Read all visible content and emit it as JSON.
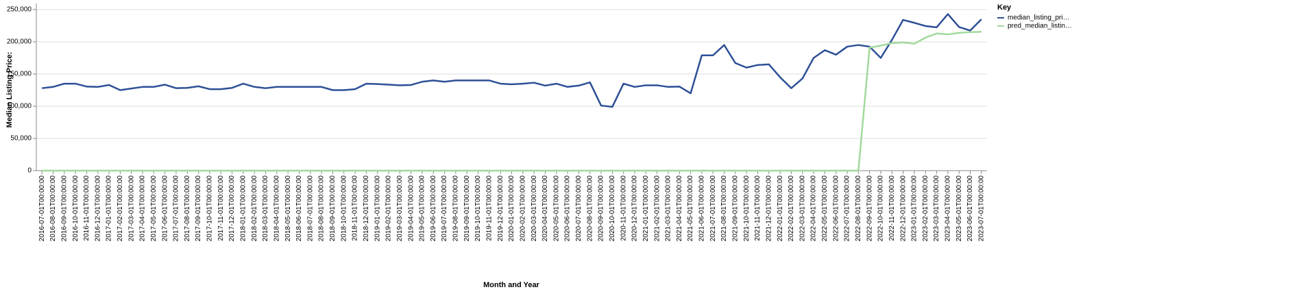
{
  "chart_data": {
    "type": "line",
    "x_label": "Month and Year",
    "y_label": "Median Listing Price:",
    "legend_title": "Key",
    "categories": [
      "2016-07-01T00:00:00",
      "2016-08-01T00:00:00",
      "2016-09-01T00:00:00",
      "2016-10-01T00:00:00",
      "2016-11-01T00:00:00",
      "2016-12-01T00:00:00",
      "2017-01-01T00:00:00",
      "2017-02-01T00:00:00",
      "2017-03-01T00:00:00",
      "2017-04-01T00:00:00",
      "2017-05-01T00:00:00",
      "2017-06-01T00:00:00",
      "2017-07-01T00:00:00",
      "2017-08-01T00:00:00",
      "2017-09-01T00:00:00",
      "2017-10-01T00:00:00",
      "2017-11-01T00:00:00",
      "2017-12-01T00:00:00",
      "2018-01-01T00:00:00",
      "2018-02-01T00:00:00",
      "2018-03-01T00:00:00",
      "2018-04-01T00:00:00",
      "2018-05-01T00:00:00",
      "2018-06-01T00:00:00",
      "2018-07-01T00:00:00",
      "2018-08-01T00:00:00",
      "2018-09-01T00:00:00",
      "2018-10-01T00:00:00",
      "2018-11-01T00:00:00",
      "2018-12-01T00:00:00",
      "2019-01-01T00:00:00",
      "2019-02-01T00:00:00",
      "2019-03-01T00:00:00",
      "2019-04-01T00:00:00",
      "2019-05-01T00:00:00",
      "2019-06-01T00:00:00",
      "2019-07-01T00:00:00",
      "2019-08-01T00:00:00",
      "2019-09-01T00:00:00",
      "2019-10-01T00:00:00",
      "2019-11-01T00:00:00",
      "2019-12-01T00:00:00",
      "2020-01-01T00:00:00",
      "2020-02-01T00:00:00",
      "2020-03-01T00:00:00",
      "2020-04-01T00:00:00",
      "2020-05-01T00:00:00",
      "2020-06-01T00:00:00",
      "2020-07-01T00:00:00",
      "2020-08-01T00:00:00",
      "2020-09-01T00:00:00",
      "2020-10-01T00:00:00",
      "2020-11-01T00:00:00",
      "2020-12-01T00:00:00",
      "2021-01-01T00:00:00",
      "2021-02-01T00:00:00",
      "2021-03-01T00:00:00",
      "2021-04-01T00:00:00",
      "2021-05-01T00:00:00",
      "2021-06-01T00:00:00",
      "2021-07-01T00:00:00",
      "2021-08-01T00:00:00",
      "2021-09-01T00:00:00",
      "2021-10-01T00:00:00",
      "2021-11-01T00:00:00",
      "2021-12-01T00:00:00",
      "2022-01-01T00:00:00",
      "2022-02-01T00:00:00",
      "2022-03-01T00:00:00",
      "2022-04-01T00:00:00",
      "2022-05-01T00:00:00",
      "2022-06-01T00:00:00",
      "2022-07-01T00:00:00",
      "2022-08-01T00:00:00",
      "2022-09-01T00:00:00",
      "2022-10-01T00:00:00",
      "2022-11-01T00:00:00",
      "2022-12-01T00:00:00",
      "2023-01-01T00:00:00",
      "2023-02-01T00:00:00",
      "2023-03-01T00:00:00",
      "2023-04-01T00:00:00",
      "2023-05-01T00:00:00",
      "2023-06-01T00:00:00",
      "2023-07-01T00:00:00"
    ],
    "series": [
      {
        "name": "median_listing_pri…",
        "color": "#2c4f96",
        "values": [
          128000,
          130000,
          135000,
          135000,
          130500,
          130000,
          133000,
          125000,
          127500,
          130000,
          130000,
          133500,
          128000,
          128500,
          131000,
          126500,
          126500,
          128500,
          135000,
          130000,
          128000,
          130000,
          130000,
          130000,
          130000,
          130000,
          125000,
          125000,
          126500,
          135000,
          134500,
          133500,
          132500,
          133000,
          138000,
          140000,
          138000,
          140000,
          140000,
          140000,
          140000,
          135000,
          134000,
          135000,
          136500,
          132000,
          135000,
          130000,
          132000,
          137000,
          101000,
          99000,
          135000,
          130000,
          132500,
          132500,
          130000,
          130500,
          120000,
          179000,
          179000,
          195000,
          167000,
          160000,
          164000,
          165000,
          145000,
          128000,
          143000,
          175000,
          187000,
          180000,
          192500,
          195000,
          192500,
          175000,
          203000,
          234000,
          229500,
          224500,
          222500,
          243000,
          223000,
          217500,
          235000
        ]
      },
      {
        "name": "pred_median_listin…",
        "color": "#a1d99b",
        "values": [
          0,
          0,
          0,
          0,
          0,
          0,
          0,
          0,
          0,
          0,
          0,
          0,
          0,
          0,
          0,
          0,
          0,
          0,
          0,
          0,
          0,
          0,
          0,
          0,
          0,
          0,
          0,
          0,
          0,
          0,
          0,
          0,
          0,
          0,
          0,
          0,
          0,
          0,
          0,
          0,
          0,
          0,
          0,
          0,
          0,
          0,
          0,
          0,
          0,
          0,
          0,
          0,
          0,
          0,
          0,
          0,
          0,
          0,
          0,
          0,
          0,
          0,
          0,
          0,
          0,
          0,
          0,
          0,
          0,
          0,
          0,
          0,
          0,
          0,
          191000,
          194000,
          198000,
          199000,
          197000,
          206500,
          213000,
          211500,
          214000,
          215000,
          215500
        ]
      }
    ],
    "ylim": [
      0,
      250000
    ],
    "yticks": [
      0,
      {
        "value": 50000,
        "label": "50,000"
      },
      {
        "value": 100000,
        "label": "100,000"
      },
      {
        "value": 150000,
        "label": "150,000"
      },
      {
        "value": 200000,
        "label": "200,000"
      },
      {
        "value": 250000,
        "label": "250,000"
      }
    ],
    "grid": true
  }
}
